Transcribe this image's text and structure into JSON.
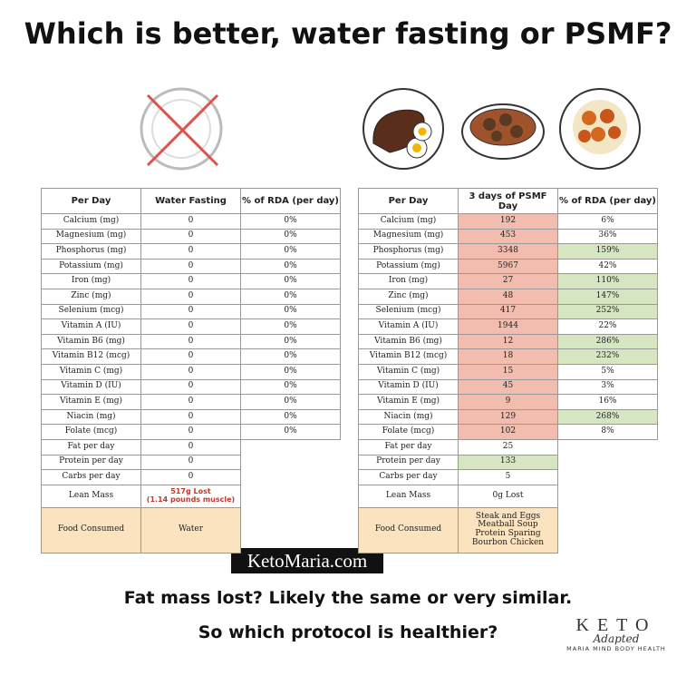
{
  "title": "Which is better, water fasting or PSMF?",
  "left_table": {
    "header": [
      "Per Day",
      "Water Fasting",
      "% of RDA (per day)"
    ],
    "rows": [
      [
        "Calcium (mg)",
        "0",
        "0%"
      ],
      [
        "Magnesium (mg)",
        "0",
        "0%"
      ],
      [
        "Phosphorus (mg)",
        "0",
        "0%"
      ],
      [
        "Potassium (mg)",
        "0",
        "0%"
      ],
      [
        "Iron (mg)",
        "0",
        "0%"
      ],
      [
        "Zinc (mg)",
        "0",
        "0%"
      ],
      [
        "Selenium (mcg)",
        "0",
        "0%"
      ],
      [
        "Vitamin A (IU)",
        "0",
        "0%"
      ],
      [
        "Vitamin B6 (mg)",
        "0",
        "0%"
      ],
      [
        "Vitamin B12 (mcg)",
        "0",
        "0%"
      ],
      [
        "Vitamin C (mg)",
        "0",
        "0%"
      ],
      [
        "Vitamin D (IU)",
        "0",
        "0%"
      ],
      [
        "Vitamin E (mg)",
        "0",
        "0%"
      ],
      [
        "Niacin (mg)",
        "0",
        "0%"
      ],
      [
        "Folate (mcg)",
        "0",
        "0%"
      ],
      [
        "Fat per day",
        "0"
      ],
      [
        "Protein per day",
        "0"
      ],
      [
        "Carbs per day",
        "0"
      ],
      [
        "Lean Mass",
        [
          "517g Lost",
          "(1.14 pounds muscle)"
        ]
      ],
      [
        "Food Consumed",
        [
          "Water"
        ]
      ]
    ]
  },
  "right_table": {
    "header": [
      "Per Day",
      "3 days of PSMF Day",
      "% of RDA (per day)"
    ],
    "rows": [
      [
        "Calcium (mg)",
        "192",
        "6%"
      ],
      [
        "Magnesium (mg)",
        "453",
        "36%"
      ],
      [
        "Phosphorus (mg)",
        "3348",
        "159%"
      ],
      [
        "Potassium (mg)",
        "5967",
        "42%"
      ],
      [
        "Iron (mg)",
        "27",
        "110%"
      ],
      [
        "Zinc (mg)",
        "48",
        "147%"
      ],
      [
        "Selenium (mcg)",
        "417",
        "252%"
      ],
      [
        "Vitamin A (IU)",
        "1944",
        "22%"
      ],
      [
        "Vitamin B6 (mg)",
        "12",
        "286%"
      ],
      [
        "Vitamin B12 (mcg)",
        "18",
        "232%"
      ],
      [
        "Vitamin C (mg)",
        "15",
        "5%"
      ],
      [
        "Vitamin D (IU)",
        "45",
        "3%"
      ],
      [
        "Vitamin E (mg)",
        "9",
        "16%"
      ],
      [
        "Niacin (mg)",
        "129",
        "268%"
      ],
      [
        "Folate (mcg)",
        "102",
        "8%"
      ],
      [
        "Fat per day",
        "25"
      ],
      [
        "Protein per day",
        "133"
      ],
      [
        "Carbs per day",
        "5"
      ],
      [
        "Lean Mass",
        "0g Lost"
      ],
      [
        "Food Consumed",
        [
          "Steak and Eggs",
          "Meatball Soup",
          "Protein Sparing Bourbon Chicken"
        ]
      ]
    ]
  },
  "watermark": "KetoMaria.com",
  "footer": [
    "Fat mass lost? Likely the same or very similar.",
    "So which protocol is healthier?"
  ],
  "logo": {
    "brand": "KETO",
    "script": "Adapted",
    "tagline": "MARIA MIND BODY HEALTH"
  }
}
